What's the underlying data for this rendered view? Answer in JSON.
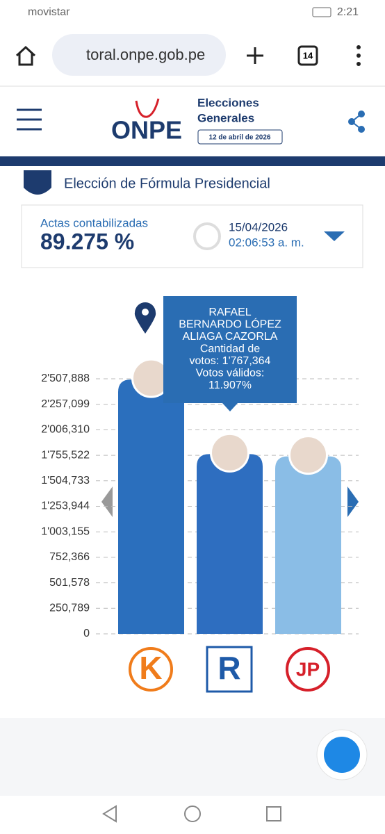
{
  "status_bar": {
    "carrier": "movistar",
    "time": "2:21"
  },
  "browser": {
    "url": "toral.onpe.gob.pe",
    "tabs": "14"
  },
  "header": {
    "logo": "ONPE",
    "line1": "Elecciones",
    "line2": "Generales",
    "date": "12 de abril de 2026"
  },
  "section_title": "Elección de Fórmula Presidencial",
  "summary": {
    "label": "Actas contabilizadas",
    "value": "89.275 %",
    "date": "15/04/2026",
    "time": "02:06:53 a. m."
  },
  "tooltip": {
    "name_lines": [
      "RAFAEL",
      "BERNARDO LÓPEZ",
      "ALIAGA CAZORLA"
    ],
    "detail_lines": [
      "Cantidad de",
      "votos: 1'767,364",
      "Votos válidos:",
      "11.907%"
    ]
  },
  "parties": [
    "K",
    "R",
    "JP"
  ],
  "chart_data": {
    "type": "bar",
    "categories": [
      null,
      null,
      null
    ],
    "values": [
      2500000,
      1767364,
      1745000
    ],
    "colors": [
      "#2b6fbd",
      "#2e6ec0",
      "#8abde6"
    ],
    "ylim": [
      0,
      2507888
    ],
    "yticks": [
      0,
      {
        "value": 250789,
        "label": "250,789"
      },
      {
        "value": 501578,
        "label": "501,578"
      },
      {
        "value": 752366,
        "label": "752,366"
      },
      {
        "value": 1003155,
        "label": "1'003,155"
      },
      {
        "value": 1253944,
        "label": "1'253,944"
      },
      {
        "value": 1504733,
        "label": "1'504,733"
      },
      {
        "value": 1755522,
        "label": "1'755,522"
      },
      {
        "value": 2006310,
        "label": "2'006,310"
      },
      {
        "value": 2257099,
        "label": "2'257,099"
      },
      {
        "value": 2507888,
        "label": "2'507,888"
      }
    ],
    "grid": true
  }
}
